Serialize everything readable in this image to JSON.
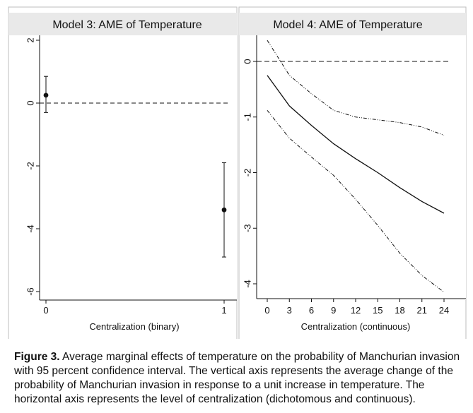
{
  "chart_data": [
    {
      "type": "scatter",
      "title": "Model 3: AME of Temperature",
      "xlabel": "Centralization (binary)",
      "ylabel": "",
      "x_ticks": [
        "0",
        "1"
      ],
      "y_ticks": [
        "2",
        "0",
        "-2",
        "-4",
        "-6"
      ],
      "xlim": [
        0,
        1
      ],
      "ylim": [
        -6,
        2
      ],
      "grid": false,
      "reference_line_y": 0,
      "points": [
        {
          "x": 0,
          "y": 0.25,
          "ci_low": -0.3,
          "ci_high": 0.85
        },
        {
          "x": 1,
          "y": -3.4,
          "ci_low": -4.9,
          "ci_high": -1.9
        }
      ]
    },
    {
      "type": "line",
      "title": "Model 4: AME of Temperature",
      "xlabel": "Centralization (continuous)",
      "ylabel": "",
      "x_ticks": [
        "0",
        "3",
        "6",
        "9",
        "12",
        "15",
        "18",
        "21",
        "24"
      ],
      "y_ticks": [
        "0",
        "-1",
        "-2",
        "-3",
        "-4"
      ],
      "xlim": [
        0,
        24
      ],
      "ylim": [
        -4,
        0
      ],
      "grid": false,
      "reference_line_y": 0,
      "x": [
        0,
        3,
        6,
        9,
        12,
        15,
        18,
        21,
        24
      ],
      "estimate": [
        -0.25,
        -0.8,
        -1.15,
        -1.48,
        -1.75,
        -2.0,
        -2.27,
        -2.52,
        -2.73
      ],
      "ci_upper": [
        0.38,
        -0.25,
        -0.58,
        -0.88,
        -1.0,
        -1.05,
        -1.1,
        -1.18,
        -1.33
      ],
      "ci_lower": [
        -0.88,
        -1.38,
        -1.72,
        -2.05,
        -2.48,
        -2.95,
        -3.45,
        -3.85,
        -4.15
      ]
    }
  ],
  "caption": {
    "label": "Figure 3.",
    "text": " Average marginal effects of temperature on the probability of Manchurian invasion with 95 percent confidence interval. The vertical axis represents the average change of the probability of Manchurian invasion in response to a unit increase in temperature. The horizontal axis represents the level of centralization (dichotomous and continuous)."
  }
}
